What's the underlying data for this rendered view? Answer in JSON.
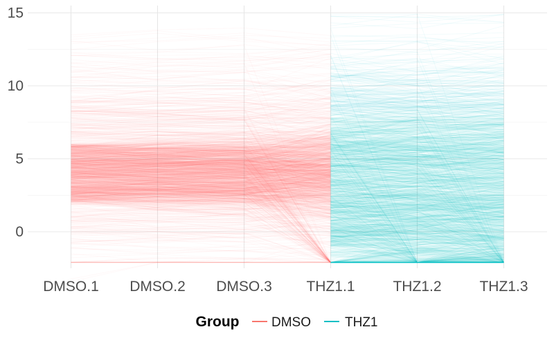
{
  "chart_data": {
    "type": "parallel-coordinates",
    "title": "",
    "xlabel": "",
    "ylabel": "",
    "categories": [
      "DMSO.1",
      "DMSO.2",
      "DMSO.3",
      "THZ1.1",
      "THZ1.2",
      "THZ1.3"
    ],
    "ylim": [
      -2.5,
      15.5
    ],
    "yticks": [
      0,
      5,
      10,
      15
    ],
    "floor_value": -2.1,
    "grid": true,
    "legend": {
      "title": "Group",
      "position": "bottom",
      "entries": [
        {
          "name": "DMSO",
          "color": "#F8766D"
        },
        {
          "name": "THZ1",
          "color": "#00BFC4"
        }
      ]
    },
    "series": [
      {
        "name": "DMSO",
        "color": "#F8766D",
        "segments": [
          "DMSO.1-DMSO.2",
          "DMSO.2-DMSO.3",
          "DMSO.3-THZ1.1"
        ],
        "dense_band": [
          2.0,
          6.0
        ],
        "spread_range": [
          -2.1,
          13.5
        ]
      },
      {
        "name": "THZ1",
        "color": "#00BFC4",
        "segments": [
          "THZ1.1-THZ1.2",
          "THZ1.2-THZ1.3"
        ],
        "dense_band": [
          -1.0,
          7.0
        ],
        "spread_range": [
          -2.1,
          15.0
        ]
      }
    ]
  }
}
